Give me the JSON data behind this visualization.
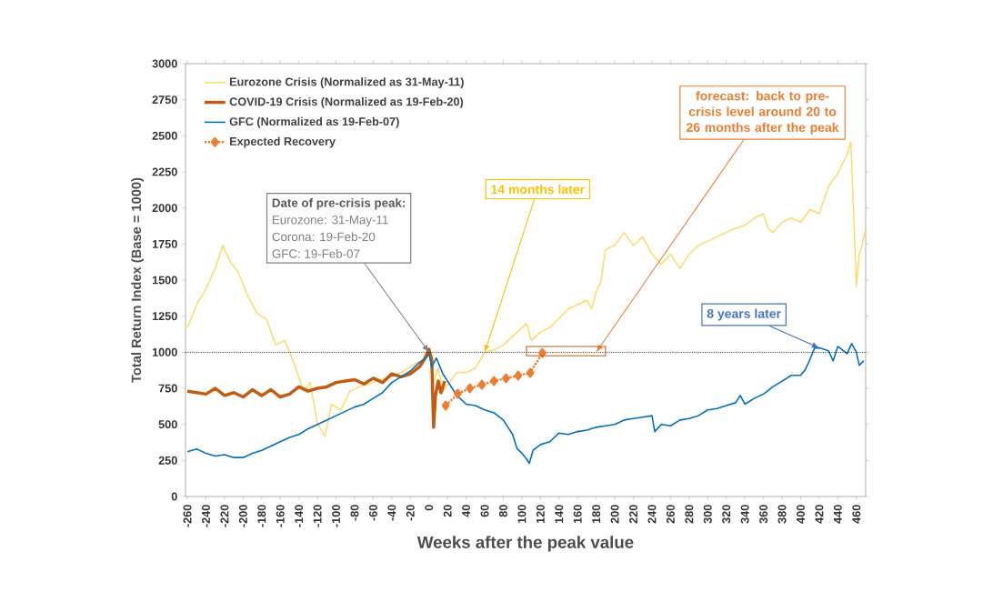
{
  "chart_data": {
    "type": "line",
    "xlabel": "Weeks after the peak value",
    "ylabel": "Total Return Index  (Base = 1000)",
    "xlim": [
      -262,
      470
    ],
    "ylim": [
      0,
      3000
    ],
    "xticks": [
      -260,
      -240,
      -220,
      -200,
      -180,
      -160,
      -140,
      -120,
      -100,
      -80,
      -60,
      -40,
      -20,
      0,
      20,
      40,
      60,
      80,
      100,
      120,
      140,
      160,
      180,
      200,
      220,
      240,
      260,
      280,
      300,
      320,
      340,
      360,
      380,
      400,
      420,
      440,
      460
    ],
    "yticks": [
      0,
      250,
      500,
      750,
      1000,
      1250,
      1500,
      1750,
      2000,
      2250,
      2500,
      2750,
      3000
    ],
    "legend": "top left",
    "series": [
      {
        "name": "Eurozone Crisis (Normalized as 31-May-11)",
        "color": "#ffd966",
        "marker": "none",
        "line_style": "solid",
        "x": [
          -260,
          -250,
          -240,
          -230,
          -222,
          -215,
          -205,
          -195,
          -185,
          -175,
          -165,
          -155,
          -145,
          -135,
          -128,
          -120,
          -112,
          -105,
          -95,
          -85,
          -75,
          -60,
          -45,
          -30,
          -15,
          -5,
          0,
          5,
          10,
          15,
          22,
          30,
          40,
          50,
          60,
          70,
          80,
          90,
          100,
          105,
          110,
          120,
          130,
          140,
          150,
          160,
          170,
          175,
          180,
          185,
          190,
          200,
          210,
          220,
          230,
          240,
          250,
          260,
          270,
          280,
          290,
          300,
          310,
          320,
          330,
          340,
          350,
          360,
          365,
          370,
          380,
          390,
          400,
          410,
          420,
          430,
          440,
          450,
          454,
          458,
          460,
          463,
          466,
          470
        ],
        "values": [
          1170,
          1330,
          1440,
          1580,
          1740,
          1640,
          1550,
          1390,
          1270,
          1230,
          1050,
          1080,
          920,
          730,
          790,
          510,
          415,
          640,
          600,
          730,
          760,
          790,
          825,
          860,
          920,
          950,
          1010,
          790,
          890,
          730,
          790,
          860,
          860,
          890,
          1000,
          1015,
          1050,
          1110,
          1170,
          1200,
          1080,
          1140,
          1170,
          1235,
          1300,
          1330,
          1360,
          1300,
          1420,
          1490,
          1710,
          1740,
          1830,
          1740,
          1800,
          1680,
          1610,
          1680,
          1580,
          1680,
          1740,
          1770,
          1800,
          1830,
          1860,
          1880,
          1930,
          1960,
          1860,
          1830,
          1900,
          1930,
          1900,
          1990,
          1960,
          2150,
          2240,
          2370,
          2460,
          1800,
          1455,
          1680,
          1740,
          1860
        ]
      },
      {
        "name": "COVID-19 Crisis (Normalized as 19-Feb-20)",
        "color": "#c55a11",
        "marker": "none",
        "line_style": "solid",
        "x": [
          -260,
          -250,
          -240,
          -230,
          -220,
          -210,
          -200,
          -190,
          -180,
          -170,
          -160,
          -150,
          -140,
          -130,
          -120,
          -110,
          -100,
          -90,
          -80,
          -70,
          -60,
          -50,
          -40,
          -30,
          -20,
          -10,
          -5,
          0,
          3,
          5,
          7,
          10,
          13,
          17
        ],
        "values": [
          730,
          720,
          710,
          750,
          700,
          720,
          690,
          740,
          700,
          740,
          690,
          710,
          760,
          730,
          750,
          760,
          790,
          800,
          810,
          780,
          820,
          790,
          850,
          830,
          850,
          900,
          950,
          1020,
          950,
          480,
          700,
          800,
          720,
          800
        ]
      },
      {
        "name": "GFC (Normalized as 19-Feb-07)",
        "color": "#0070c0",
        "marker": "none",
        "line_style": "solid",
        "x": [
          -260,
          -250,
          -240,
          -230,
          -220,
          -210,
          -200,
          -190,
          -180,
          -170,
          -160,
          -150,
          -140,
          -130,
          -120,
          -110,
          -100,
          -90,
          -80,
          -70,
          -60,
          -50,
          -40,
          -30,
          -20,
          -10,
          -3,
          0,
          3,
          8,
          15,
          22,
          30,
          40,
          50,
          60,
          70,
          80,
          90,
          95,
          100,
          105,
          108,
          112,
          120,
          130,
          140,
          150,
          160,
          170,
          180,
          190,
          200,
          210,
          220,
          230,
          240,
          243,
          250,
          260,
          270,
          280,
          290,
          300,
          310,
          320,
          330,
          335,
          340,
          350,
          360,
          370,
          380,
          390,
          400,
          405,
          410,
          415,
          420,
          430,
          435,
          440,
          450,
          455,
          460,
          463,
          468
        ],
        "values": [
          310,
          330,
          300,
          280,
          290,
          270,
          270,
          300,
          320,
          350,
          380,
          410,
          430,
          470,
          500,
          530,
          560,
          590,
          620,
          640,
          680,
          720,
          790,
          830,
          870,
          930,
          960,
          990,
          900,
          960,
          850,
          780,
          700,
          640,
          630,
          600,
          580,
          530,
          430,
          330,
          300,
          260,
          230,
          320,
          360,
          380,
          440,
          430,
          450,
          460,
          480,
          490,
          500,
          530,
          540,
          550,
          560,
          450,
          500,
          490,
          530,
          540,
          560,
          600,
          610,
          630,
          650,
          700,
          640,
          680,
          710,
          760,
          800,
          840,
          840,
          880,
          950,
          1030,
          1030,
          1010,
          940,
          1040,
          990,
          1060,
          1000,
          910,
          940
        ]
      },
      {
        "name": "Expected Recovery",
        "color": "#ed7d31",
        "marker": "diamond",
        "line_style": "dotted",
        "x": [
          18,
          31,
          44,
          57,
          70,
          83,
          96,
          109,
          122
        ],
        "values": [
          630,
          712,
          750,
          775,
          800,
          819,
          838,
          857,
          995
        ]
      }
    ],
    "ref_lines": [
      {
        "axis": "y",
        "value": 1000,
        "color": "#000000",
        "line_style": "dotted"
      }
    ],
    "annotations": [
      "Date of pre-crisis peak:",
      "Eurozone: 31-May-11",
      "Corona: 19-Feb-20",
      {
        "text": "GFC: 19-Feb-07",
        "x": 0,
        "y": 1000
      },
      {
        "text": "14 months later",
        "x": 60,
        "y": 1000
      },
      {
        "text": "forecast: back to pre-crisis level around 20 to 26 months after the peak",
        "x": 180,
        "y": 1000
      },
      {
        "text": "8 years later",
        "x": 420,
        "y": 1030
      }
    ]
  }
}
